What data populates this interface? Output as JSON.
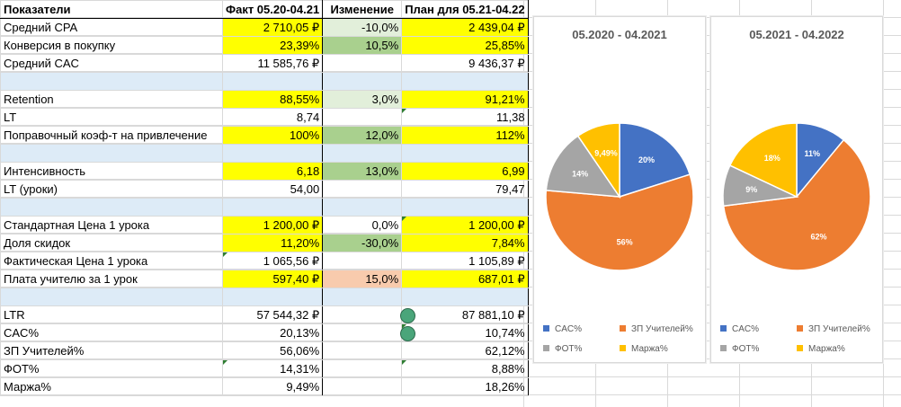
{
  "table": {
    "header": [
      "Показатели",
      "Факт 05.20-04.21",
      "Изменение",
      "План для 05.21-04.22"
    ],
    "rows": [
      {
        "label": "Средний CPA",
        "fact": "2 710,05 ₽",
        "change": "-10,0%",
        "plan": "2 439,04 ₽"
      },
      {
        "label": "Конверсия в покупку",
        "fact": "23,39%",
        "change": "10,5%",
        "plan": "25,85%"
      },
      {
        "label": "Средний CAC",
        "fact": "11 585,76 ₽",
        "change": "",
        "plan": "9 436,37 ₽"
      },
      {
        "label": "",
        "fact": "",
        "change": "",
        "plan": ""
      },
      {
        "label": "Retention",
        "fact": "88,55%",
        "change": "3,0%",
        "plan": "91,21%"
      },
      {
        "label": "LT",
        "fact": "8,74",
        "change": "",
        "plan": "11,38"
      },
      {
        "label": "Поправочный коэф-т на привлечение",
        "fact": "100%",
        "change": "12,0%",
        "plan": "112%"
      },
      {
        "label": "",
        "fact": "",
        "change": "",
        "plan": ""
      },
      {
        "label": "Интенсивность",
        "fact": "6,18",
        "change": "13,0%",
        "plan": "6,99"
      },
      {
        "label": "LT (уроки)",
        "fact": "54,00",
        "change": "",
        "plan": "79,47"
      },
      {
        "label": "",
        "fact": "",
        "change": "",
        "plan": ""
      },
      {
        "label": "Стандартная Цена 1 урока",
        "fact": "1 200,00 ₽",
        "change": "0,0%",
        "plan": "1 200,00 ₽"
      },
      {
        "label": "Доля скидок",
        "fact": "11,20%",
        "change": "-30,0%",
        "plan": "7,84%"
      },
      {
        "label": "Фактическая Цена 1 урока",
        "fact": "1 065,56 ₽",
        "change": "",
        "plan": "1 105,89 ₽"
      },
      {
        "label": "Плата учителю за 1 урок",
        "fact": "597,40 ₽",
        "change": "15,0%",
        "plan": "687,01 ₽"
      },
      {
        "label": "",
        "fact": "",
        "change": "",
        "plan": ""
      },
      {
        "label": "LTR",
        "fact": "57 544,32 ₽",
        "change": "",
        "plan": "87 881,10 ₽"
      },
      {
        "label": "CAC%",
        "fact": "20,13%",
        "change": "",
        "plan": "10,74%"
      },
      {
        "label": "ЗП Учителей%",
        "fact": "56,06%",
        "change": "",
        "plan": "62,12%"
      },
      {
        "label": "ФОТ%",
        "fact": "14,31%",
        "change": "",
        "plan": "8,88%"
      },
      {
        "label": "Маржа%",
        "fact": "9,49%",
        "change": "",
        "plan": "18,26%"
      }
    ]
  },
  "colors": {
    "cac": "#4472c4",
    "zp": "#ed7d31",
    "fot": "#a5a5a5",
    "marzha": "#ffc000",
    "highlight_yellow": "#ffff00",
    "light_green": "#e2efda",
    "medium_green": "#a9d08e",
    "pink": "#f8cbad",
    "blank_row_blue": "#ddebf7"
  },
  "chart_data": [
    {
      "type": "pie",
      "title": "05.2020 - 04.2021",
      "categories": [
        "CAC%",
        "ЗП Учителей%",
        "ФОТ%",
        "Маржа%"
      ],
      "values": [
        20,
        56,
        14,
        9.49
      ],
      "labels": [
        "20%",
        "56%",
        "14%",
        "9,49%"
      ],
      "legend": "bottom"
    },
    {
      "type": "pie",
      "title": "05.2021 - 04.2022",
      "categories": [
        "CAC%",
        "ЗП Учителей%",
        "ФОТ%",
        "Маржа%"
      ],
      "values": [
        11,
        62,
        9,
        18
      ],
      "labels": [
        "11%",
        "62%",
        "9%",
        "18%"
      ],
      "legend": "bottom"
    }
  ]
}
